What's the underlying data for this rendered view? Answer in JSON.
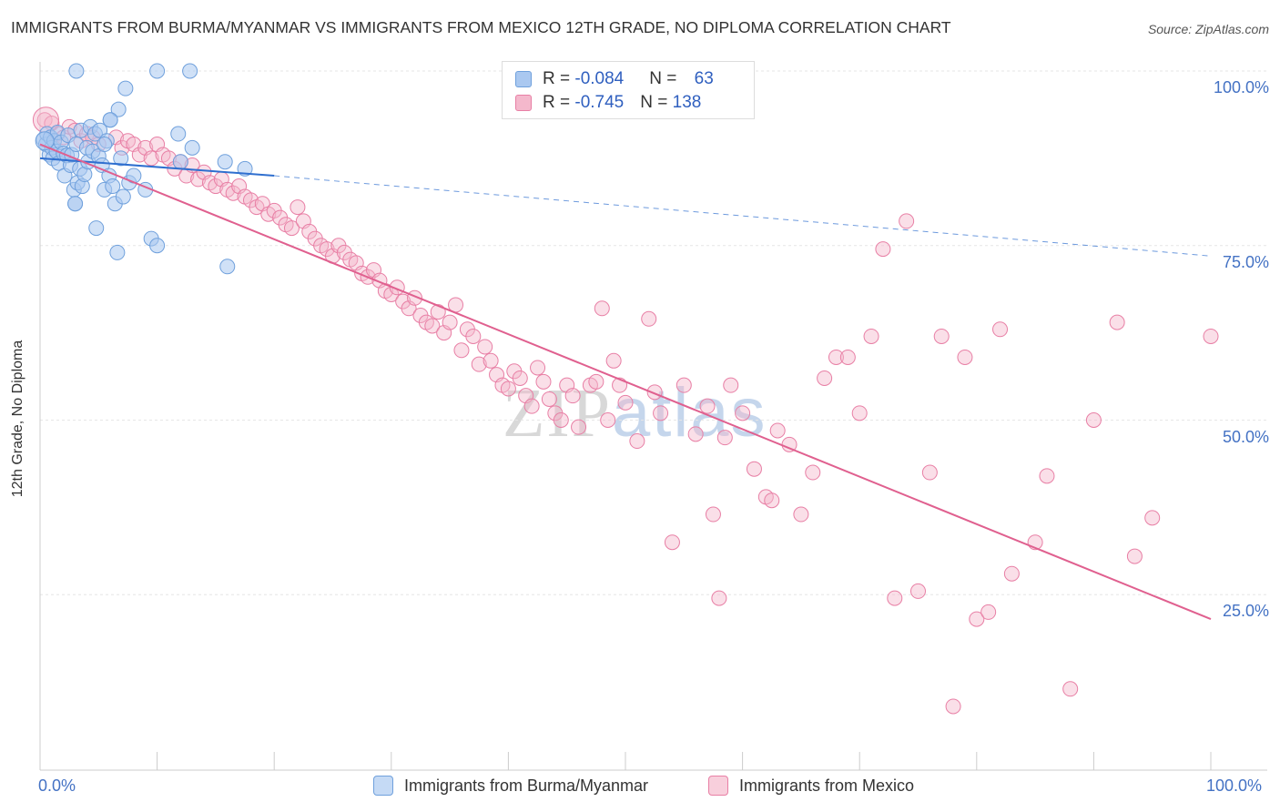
{
  "title": "IMMIGRANTS FROM BURMA/MYANMAR VS IMMIGRANTS FROM MEXICO 12TH GRADE, NO DIPLOMA CORRELATION CHART",
  "source": "Source: ZipAtlas.com",
  "watermark": {
    "part1": "ZIP",
    "part2": "atlas"
  },
  "legend": {
    "burma": {
      "r_label": "R = ",
      "r_value": "-0.084",
      "n_label": "N = ",
      "n_value": "63"
    },
    "mexico": {
      "r_label": "R = ",
      "r_value": "-0.745",
      "n_label": "N = ",
      "n_value": "138"
    }
  },
  "colors": {
    "burma": "#6fa0dc",
    "burma_fill": "#aac8f0",
    "mexico": "#e87fa5",
    "mexico_fill": "#f4b8cc",
    "axis_text": "#4472c4",
    "grid": "#e6e6e6"
  },
  "chart_data": {
    "type": "scatter",
    "title": "IMMIGRANTS FROM BURMA/MYANMAR VS IMMIGRANTS FROM MEXICO 12TH GRADE, NO DIPLOMA CORRELATION CHART",
    "xlabel": "",
    "ylabel": "12th Grade, No Diploma",
    "xlim": [
      0,
      100
    ],
    "ylim": [
      0,
      102
    ],
    "x_tick_labels": [
      "0.0%",
      "100.0%"
    ],
    "y_tick_labels": [
      "100.0%",
      "75.0%",
      "50.0%",
      "25.0%"
    ],
    "y_ticks": [
      100,
      75,
      50,
      25
    ],
    "grid": true,
    "legend_position": "top-center",
    "series": [
      {
        "name": "Immigrants from Burma/Myanmar",
        "color": "#6fa0dc",
        "trend": {
          "x": [
            0,
            20
          ],
          "y": [
            87.5,
            85.0
          ],
          "dashed_extension_to": [
            100,
            73.5
          ]
        },
        "points": [
          [
            0.3,
            90.2
          ],
          [
            0.5,
            89.5
          ],
          [
            0.6,
            91.0
          ],
          [
            0.8,
            88.0
          ],
          [
            0.9,
            90.5
          ],
          [
            1.0,
            89.0
          ],
          [
            1.1,
            87.5
          ],
          [
            1.2,
            90.0
          ],
          [
            1.4,
            88.5
          ],
          [
            1.5,
            91.2
          ],
          [
            1.6,
            86.8
          ],
          [
            1.8,
            89.8
          ],
          [
            2.0,
            88.2
          ],
          [
            2.1,
            85.0
          ],
          [
            2.3,
            87.9
          ],
          [
            2.4,
            90.8
          ],
          [
            2.6,
            86.5
          ],
          [
            2.7,
            88.0
          ],
          [
            2.9,
            83.0
          ],
          [
            3.0,
            81.0
          ],
          [
            3.1,
            89.5
          ],
          [
            3.2,
            84.0
          ],
          [
            3.4,
            86.0
          ],
          [
            3.5,
            91.5
          ],
          [
            3.6,
            83.5
          ],
          [
            3.8,
            85.2
          ],
          [
            4.0,
            89.0
          ],
          [
            4.1,
            87.0
          ],
          [
            4.3,
            92.0
          ],
          [
            4.5,
            88.5
          ],
          [
            4.7,
            91.0
          ],
          [
            4.8,
            77.5
          ],
          [
            5.0,
            87.8
          ],
          [
            5.1,
            91.5
          ],
          [
            5.3,
            86.5
          ],
          [
            5.5,
            83.0
          ],
          [
            5.7,
            90.0
          ],
          [
            5.9,
            85.0
          ],
          [
            6.0,
            93.0
          ],
          [
            6.2,
            83.5
          ],
          [
            6.4,
            81.0
          ],
          [
            6.6,
            74.0
          ],
          [
            6.7,
            94.5
          ],
          [
            6.9,
            87.5
          ],
          [
            7.1,
            82.0
          ],
          [
            7.3,
            97.5
          ],
          [
            7.6,
            84.0
          ],
          [
            8.0,
            85.0
          ],
          [
            3.0,
            81.0
          ],
          [
            9.5,
            76.0
          ],
          [
            10.0,
            75.0
          ],
          [
            11.8,
            91.0
          ],
          [
            12.0,
            87.0
          ],
          [
            13.0,
            89.0
          ],
          [
            3.1,
            100.0
          ],
          [
            10.0,
            100.0
          ],
          [
            12.8,
            100.0
          ],
          [
            15.8,
            87.0
          ],
          [
            16.0,
            72.0
          ],
          [
            17.5,
            86.0
          ],
          [
            6.0,
            93.0
          ],
          [
            5.5,
            89.5
          ],
          [
            9.0,
            83.0
          ]
        ]
      },
      {
        "name": "Immigrants from Mexico",
        "color": "#e87fa5",
        "trend": {
          "x": [
            0,
            100
          ],
          "y": [
            89.5,
            21.5
          ]
        },
        "points": [
          [
            0.4,
            93.0
          ],
          [
            1.0,
            92.5
          ],
          [
            1.5,
            91.0
          ],
          [
            2.0,
            90.5
          ],
          [
            2.5,
            92.0
          ],
          [
            3.0,
            91.5
          ],
          [
            3.5,
            90.0
          ],
          [
            4.0,
            91.0
          ],
          [
            4.5,
            90.5
          ],
          [
            5.0,
            89.5
          ],
          [
            6.5,
            90.5
          ],
          [
            7.0,
            89.0
          ],
          [
            7.5,
            90.0
          ],
          [
            8.0,
            89.5
          ],
          [
            8.5,
            88.0
          ],
          [
            9.0,
            89.0
          ],
          [
            9.5,
            87.5
          ],
          [
            10.0,
            89.5
          ],
          [
            10.5,
            88.0
          ],
          [
            11.0,
            87.5
          ],
          [
            11.5,
            86.0
          ],
          [
            12.0,
            87.0
          ],
          [
            12.5,
            85.0
          ],
          [
            13.0,
            86.5
          ],
          [
            13.5,
            84.5
          ],
          [
            14.0,
            85.5
          ],
          [
            14.5,
            84.0
          ],
          [
            15.0,
            83.5
          ],
          [
            15.5,
            84.5
          ],
          [
            16.0,
            83.0
          ],
          [
            16.5,
            82.5
          ],
          [
            17.0,
            83.5
          ],
          [
            17.5,
            82.0
          ],
          [
            18.0,
            81.5
          ],
          [
            18.5,
            80.5
          ],
          [
            19.0,
            81.0
          ],
          [
            19.5,
            79.5
          ],
          [
            20.0,
            80.0
          ],
          [
            20.5,
            79.0
          ],
          [
            21.0,
            78.0
          ],
          [
            21.5,
            77.5
          ],
          [
            22.0,
            80.5
          ],
          [
            22.5,
            78.5
          ],
          [
            23.0,
            77.0
          ],
          [
            23.5,
            76.0
          ],
          [
            24.0,
            75.0
          ],
          [
            24.5,
            74.5
          ],
          [
            25.0,
            73.5
          ],
          [
            25.5,
            75.0
          ],
          [
            26.0,
            74.0
          ],
          [
            26.5,
            73.0
          ],
          [
            27.0,
            72.5
          ],
          [
            27.5,
            71.0
          ],
          [
            28.0,
            70.5
          ],
          [
            28.5,
            71.5
          ],
          [
            29.0,
            70.0
          ],
          [
            29.5,
            68.5
          ],
          [
            30.0,
            68.0
          ],
          [
            30.5,
            69.0
          ],
          [
            31.0,
            67.0
          ],
          [
            31.5,
            66.0
          ],
          [
            32.0,
            67.5
          ],
          [
            32.5,
            65.0
          ],
          [
            33.0,
            64.0
          ],
          [
            33.5,
            63.5
          ],
          [
            34.0,
            65.5
          ],
          [
            34.5,
            62.5
          ],
          [
            35.0,
            64.0
          ],
          [
            35.5,
            66.5
          ],
          [
            36.0,
            60.0
          ],
          [
            36.5,
            63.0
          ],
          [
            37.0,
            62.0
          ],
          [
            37.5,
            58.0
          ],
          [
            38.0,
            60.5
          ],
          [
            38.5,
            58.5
          ],
          [
            39.0,
            56.5
          ],
          [
            39.5,
            55.0
          ],
          [
            40.0,
            54.5
          ],
          [
            40.5,
            57.0
          ],
          [
            41.0,
            56.0
          ],
          [
            41.5,
            53.5
          ],
          [
            42.0,
            52.0
          ],
          [
            42.5,
            57.5
          ],
          [
            43.0,
            55.5
          ],
          [
            43.5,
            53.0
          ],
          [
            44.0,
            51.0
          ],
          [
            44.5,
            50.0
          ],
          [
            45.0,
            55.0
          ],
          [
            45.5,
            53.5
          ],
          [
            46.0,
            49.0
          ],
          [
            47.0,
            55.0
          ],
          [
            47.5,
            55.5
          ],
          [
            48.0,
            66.0
          ],
          [
            48.5,
            50.0
          ],
          [
            49.0,
            58.5
          ],
          [
            49.5,
            55.0
          ],
          [
            50.0,
            52.5
          ],
          [
            51.0,
            47.0
          ],
          [
            52.0,
            64.5
          ],
          [
            52.5,
            54.0
          ],
          [
            53.0,
            51.0
          ],
          [
            54.0,
            32.5
          ],
          [
            55.0,
            55.0
          ],
          [
            56.0,
            48.0
          ],
          [
            57.0,
            52.0
          ],
          [
            57.5,
            36.5
          ],
          [
            58.0,
            24.5
          ],
          [
            58.5,
            47.5
          ],
          [
            59.0,
            55.0
          ],
          [
            60.0,
            51.0
          ],
          [
            61.0,
            43.0
          ],
          [
            62.0,
            39.0
          ],
          [
            62.5,
            38.5
          ],
          [
            63.0,
            48.5
          ],
          [
            64.0,
            46.5
          ],
          [
            65.0,
            36.5
          ],
          [
            66.0,
            42.5
          ],
          [
            67.0,
            56.0
          ],
          [
            68.0,
            59.0
          ],
          [
            69.0,
            59.0
          ],
          [
            70.0,
            51.0
          ],
          [
            71.0,
            62.0
          ],
          [
            72.0,
            74.5
          ],
          [
            73.0,
            24.5
          ],
          [
            74.0,
            78.5
          ],
          [
            75.0,
            25.5
          ],
          [
            76.0,
            42.5
          ],
          [
            77.0,
            62.0
          ],
          [
            78.0,
            9.0
          ],
          [
            79.0,
            59.0
          ],
          [
            80.0,
            21.5
          ],
          [
            81.0,
            22.5
          ],
          [
            82.0,
            63.0
          ],
          [
            83.0,
            28.0
          ],
          [
            85.0,
            32.5
          ],
          [
            86.0,
            42.0
          ],
          [
            88.0,
            11.5
          ],
          [
            90.0,
            50.0
          ],
          [
            92.0,
            64.0
          ],
          [
            93.5,
            30.5
          ],
          [
            95.0,
            36.0
          ],
          [
            100.0,
            62.0
          ]
        ]
      }
    ]
  },
  "bottom_legend": [
    {
      "label": "Immigrants from Burma/Myanmar"
    },
    {
      "label": "Immigrants from Mexico"
    }
  ]
}
